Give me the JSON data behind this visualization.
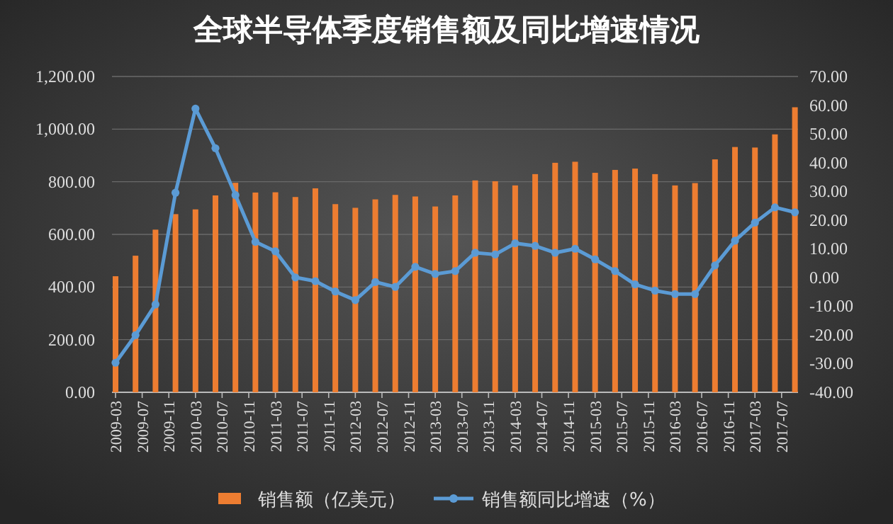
{
  "chart_data": {
    "type": "bar",
    "title": "全球半导体季度销售额及同比增速情况",
    "x": [
      "2009-03",
      "2009-06",
      "2009-09",
      "2009-12",
      "2010-03",
      "2010-06",
      "2010-09",
      "2010-12",
      "2011-03",
      "2011-06",
      "2011-09",
      "2011-12",
      "2012-03",
      "2012-06",
      "2012-09",
      "2012-12",
      "2013-03",
      "2013-06",
      "2013-09",
      "2013-12",
      "2014-03",
      "2014-06",
      "2014-09",
      "2014-12",
      "2015-03",
      "2015-06",
      "2015-09",
      "2015-12",
      "2016-03",
      "2016-06",
      "2016-09",
      "2016-12",
      "2017-03",
      "2017-06",
      "2017-09"
    ],
    "series": [
      {
        "name": "销售额（亿美元）",
        "color": "#ed7d31",
        "values": [
          441,
          519,
          618,
          677,
          695,
          748,
          796,
          759,
          760,
          742,
          775,
          715,
          701,
          733,
          750,
          744,
          706,
          748,
          805,
          802,
          786,
          829,
          872,
          876,
          834,
          845,
          850,
          829,
          786,
          795,
          885,
          932,
          930,
          980,
          1083
        ]
      },
      {
        "name": "销售额同比增速（%）",
        "type": "line",
        "axis": "y2",
        "color": "#5b9bd5",
        "marker": "circle",
        "values": [
          -29.7,
          -20.1,
          -9.4,
          29.5,
          58.8,
          45.0,
          28.7,
          12.4,
          9.1,
          0.0,
          -1.3,
          -4.9,
          -7.9,
          -1.6,
          -3.3,
          3.7,
          1.2,
          2.2,
          8.6,
          8.0,
          11.9,
          11.0,
          8.6,
          10.0,
          6.3,
          2.2,
          -2.4,
          -4.6,
          -5.8,
          -5.8,
          4.2,
          12.8,
          19.1,
          24.4,
          22.7
        ]
      }
    ],
    "xlim": [
      "2009-02-15",
      "2017-09-15"
    ],
    "xticks": [
      "2009-03",
      "2009-07",
      "2009-11",
      "2010-03",
      "2010-07",
      "2010-11",
      "2011-03",
      "2011-07",
      "2011-11",
      "2012-03",
      "2012-07",
      "2012-11",
      "2013-03",
      "2013-07",
      "2013-11",
      "2014-03",
      "2014-07",
      "2014-11",
      "2015-03",
      "2015-07",
      "2015-11",
      "2016-03",
      "2016-07",
      "2016-11",
      "2017-03",
      "2017-07"
    ],
    "ylim": [
      0,
      1200
    ],
    "yticks": [
      {
        "value": 0,
        "label": "0.00"
      },
      {
        "value": 200,
        "label": "200.00"
      },
      {
        "value": 400,
        "label": "400.00"
      },
      {
        "value": 600,
        "label": "600.00"
      },
      {
        "value": 800,
        "label": "800.00"
      },
      {
        "value": 1000,
        "label": "1,000.00"
      },
      {
        "value": 1200,
        "label": "1,200.00"
      }
    ],
    "y2lim": [
      -40,
      70
    ],
    "y2ticks": [
      {
        "value": -40,
        "label": "-40.00"
      },
      {
        "value": -30,
        "label": "-30.00"
      },
      {
        "value": -20,
        "label": "-20.00"
      },
      {
        "value": -10,
        "label": "-10.00"
      },
      {
        "value": 0,
        "label": "0.00"
      },
      {
        "value": 10,
        "label": "10.00"
      },
      {
        "value": 20,
        "label": "20.00"
      },
      {
        "value": 30,
        "label": "30.00"
      },
      {
        "value": 40,
        "label": "40.00"
      },
      {
        "value": 50,
        "label": "50.00"
      },
      {
        "value": 60,
        "label": "60.00"
      },
      {
        "value": 70,
        "label": "70.00"
      }
    ],
    "grid": "y",
    "legend": "bottom"
  }
}
